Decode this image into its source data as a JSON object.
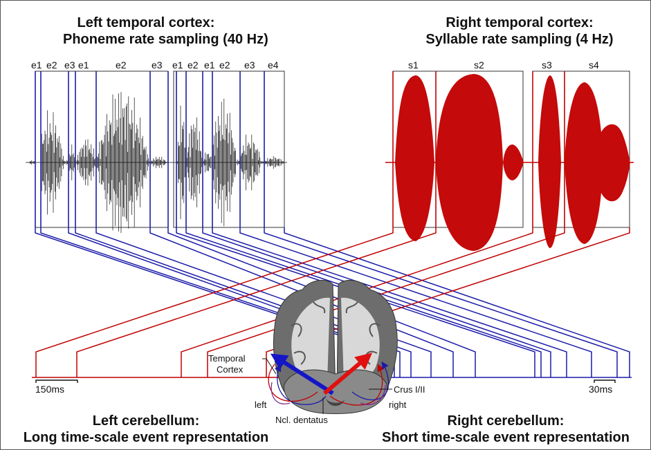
{
  "titles": {
    "top_left_line1": "Left temporal cortex:",
    "top_left_line2": "Phoneme rate sampling (40 Hz)",
    "top_right_line1": "Right temporal cortex:",
    "top_right_line2": "Syllable rate sampling (4 Hz)",
    "bottom_left_line1": "Left cerebellum:",
    "bottom_left_line2": "Long time-scale event representation",
    "bottom_right_line1": "Right cerebellum:",
    "bottom_right_line2": "Short time-scale event representation"
  },
  "event_labels": [
    "e1",
    "e2",
    "e3",
    "e1",
    "e2",
    "e3",
    "e1",
    "e2",
    "e1",
    "e2",
    "e3",
    "e4"
  ],
  "syllable_labels": [
    "s1",
    "s2",
    "s3",
    "s4"
  ],
  "scale": {
    "left": "150ms",
    "right": "30ms"
  },
  "brain_labels": {
    "temporal_line1": "Temporal",
    "temporal_line2": "Cortex",
    "crus": "Crus I/II",
    "left": "left",
    "right": "right",
    "dentatus": "Ncl. dentatus"
  },
  "colors": {
    "blue": "#1a1aa8",
    "red": "#c00000",
    "fill_red": "#c40a0a"
  }
}
